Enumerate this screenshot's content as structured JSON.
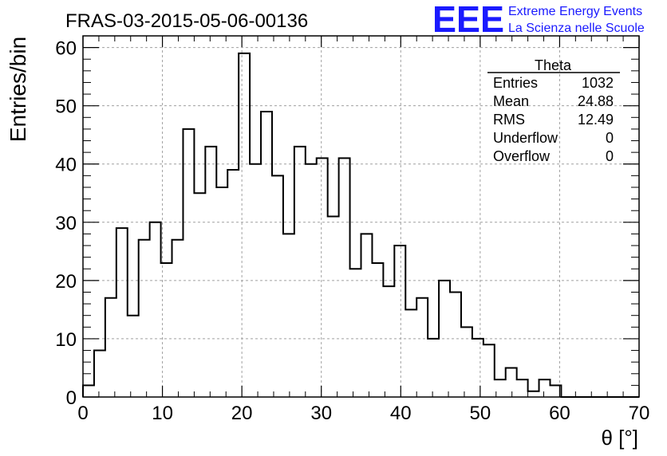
{
  "chart_data": {
    "type": "bar",
    "title": "FRAS-03-2015-05-06-00136",
    "xlabel": "θ [°]",
    "ylabel": "Entries/bin",
    "xlim": [
      0,
      70
    ],
    "ylim": [
      0,
      62
    ],
    "bin_width": 1.4,
    "x_ticks": [
      "0",
      "10",
      "20",
      "30",
      "40",
      "50",
      "60",
      "70"
    ],
    "y_ticks": [
      "0",
      "10",
      "20",
      "30",
      "40",
      "50",
      "60"
    ],
    "grid": true,
    "values": [
      2,
      8,
      17,
      29,
      14,
      27,
      30,
      23,
      27,
      46,
      35,
      43,
      36,
      39,
      59,
      40,
      49,
      38,
      28,
      43,
      40,
      41,
      31,
      41,
      22,
      28,
      23,
      19,
      26,
      15,
      17,
      10,
      20,
      18,
      12,
      10,
      9,
      3,
      5,
      3,
      1,
      3,
      2,
      0,
      0,
      0,
      0,
      0,
      0,
      0
    ],
    "stats": {
      "title": "Theta",
      "rows": [
        {
          "label": "Entries",
          "value": "1032"
        },
        {
          "label": "Mean",
          "value": "24.88"
        },
        {
          "label": "RMS",
          "value": "12.49"
        },
        {
          "label": "Underflow",
          "value": "0"
        },
        {
          "label": "Overflow",
          "value": "0"
        }
      ]
    }
  },
  "logo": {
    "mark": "EEE",
    "line1": "Extreme Energy Events",
    "line2": "La Scienza nelle Scuole",
    "color": "#1a1aff"
  }
}
